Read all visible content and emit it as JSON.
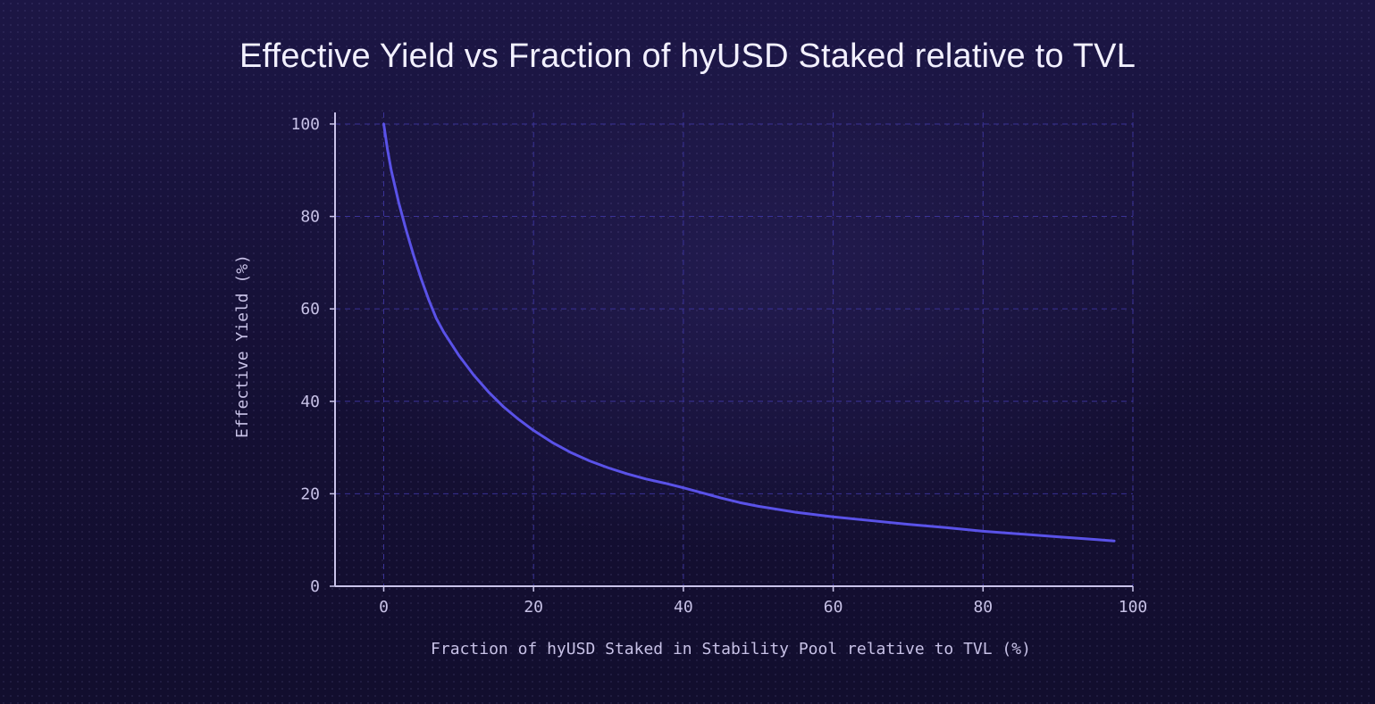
{
  "chart_data": {
    "type": "line",
    "title": "Effective Yield vs Fraction of hyUSD Staked relative to TVL",
    "xlabel": "Fraction of hyUSD Staked in Stability Pool relative to TVL (%)",
    "ylabel": "Effective Yield (%)",
    "xlim": [
      -6.5,
      100
    ],
    "ylim": [
      0,
      102.5
    ],
    "grid": true,
    "x_ticks": [
      "0",
      "20",
      "40",
      "60",
      "80",
      "100"
    ],
    "y_ticks": [
      "0",
      "20",
      "40",
      "60",
      "80",
      "100"
    ],
    "series": [
      {
        "color": "#5a52e8",
        "x": [
          0,
          0.5,
          1,
          1.5,
          2,
          2.5,
          3,
          4,
          5,
          6,
          7,
          8,
          9,
          10,
          12,
          14,
          16,
          18,
          20,
          22.5,
          25,
          27.5,
          30,
          32.5,
          35,
          37.5,
          40,
          42.5,
          45,
          47.5,
          50,
          55,
          60,
          65,
          70,
          75,
          80,
          85,
          90,
          95,
          97.5
        ],
        "y": [
          100,
          94.5,
          90,
          86.5,
          83,
          80,
          77,
          71.5,
          66.5,
          62,
          58,
          55,
          52.5,
          50,
          45.7,
          42,
          38.8,
          36.1,
          33.7,
          31.1,
          28.9,
          27.1,
          25.6,
          24.3,
          23.2,
          22.3,
          21.3,
          20.2,
          19.1,
          18.1,
          17.3,
          16,
          15,
          14.2,
          13.4,
          12.7,
          11.9,
          11.3,
          10.7,
          10.1,
          9.8
        ]
      }
    ]
  }
}
